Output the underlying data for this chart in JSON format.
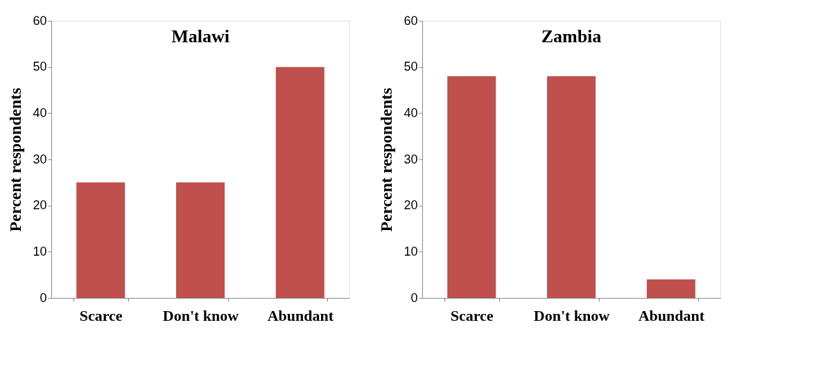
{
  "chart_data": [
    {
      "type": "bar",
      "title": "Malawi",
      "ylabel": "Percent respondents",
      "categories": [
        "Scarce",
        "Don't know",
        "Abundant"
      ],
      "values": [
        25,
        25,
        50
      ],
      "color": "#c0504d",
      "ylim": [
        0,
        60
      ],
      "yticks": [
        0,
        10,
        20,
        30,
        40,
        50,
        60
      ],
      "grid": false
    },
    {
      "type": "bar",
      "title": "Zambia",
      "ylabel": "Percent respondents",
      "categories": [
        "Scarce",
        "Don't know",
        "Abundant"
      ],
      "values": [
        48,
        48,
        4
      ],
      "color": "#c0504d",
      "ylim": [
        0,
        60
      ],
      "yticks": [
        0,
        10,
        20,
        30,
        40,
        50,
        60
      ],
      "grid": false
    }
  ]
}
